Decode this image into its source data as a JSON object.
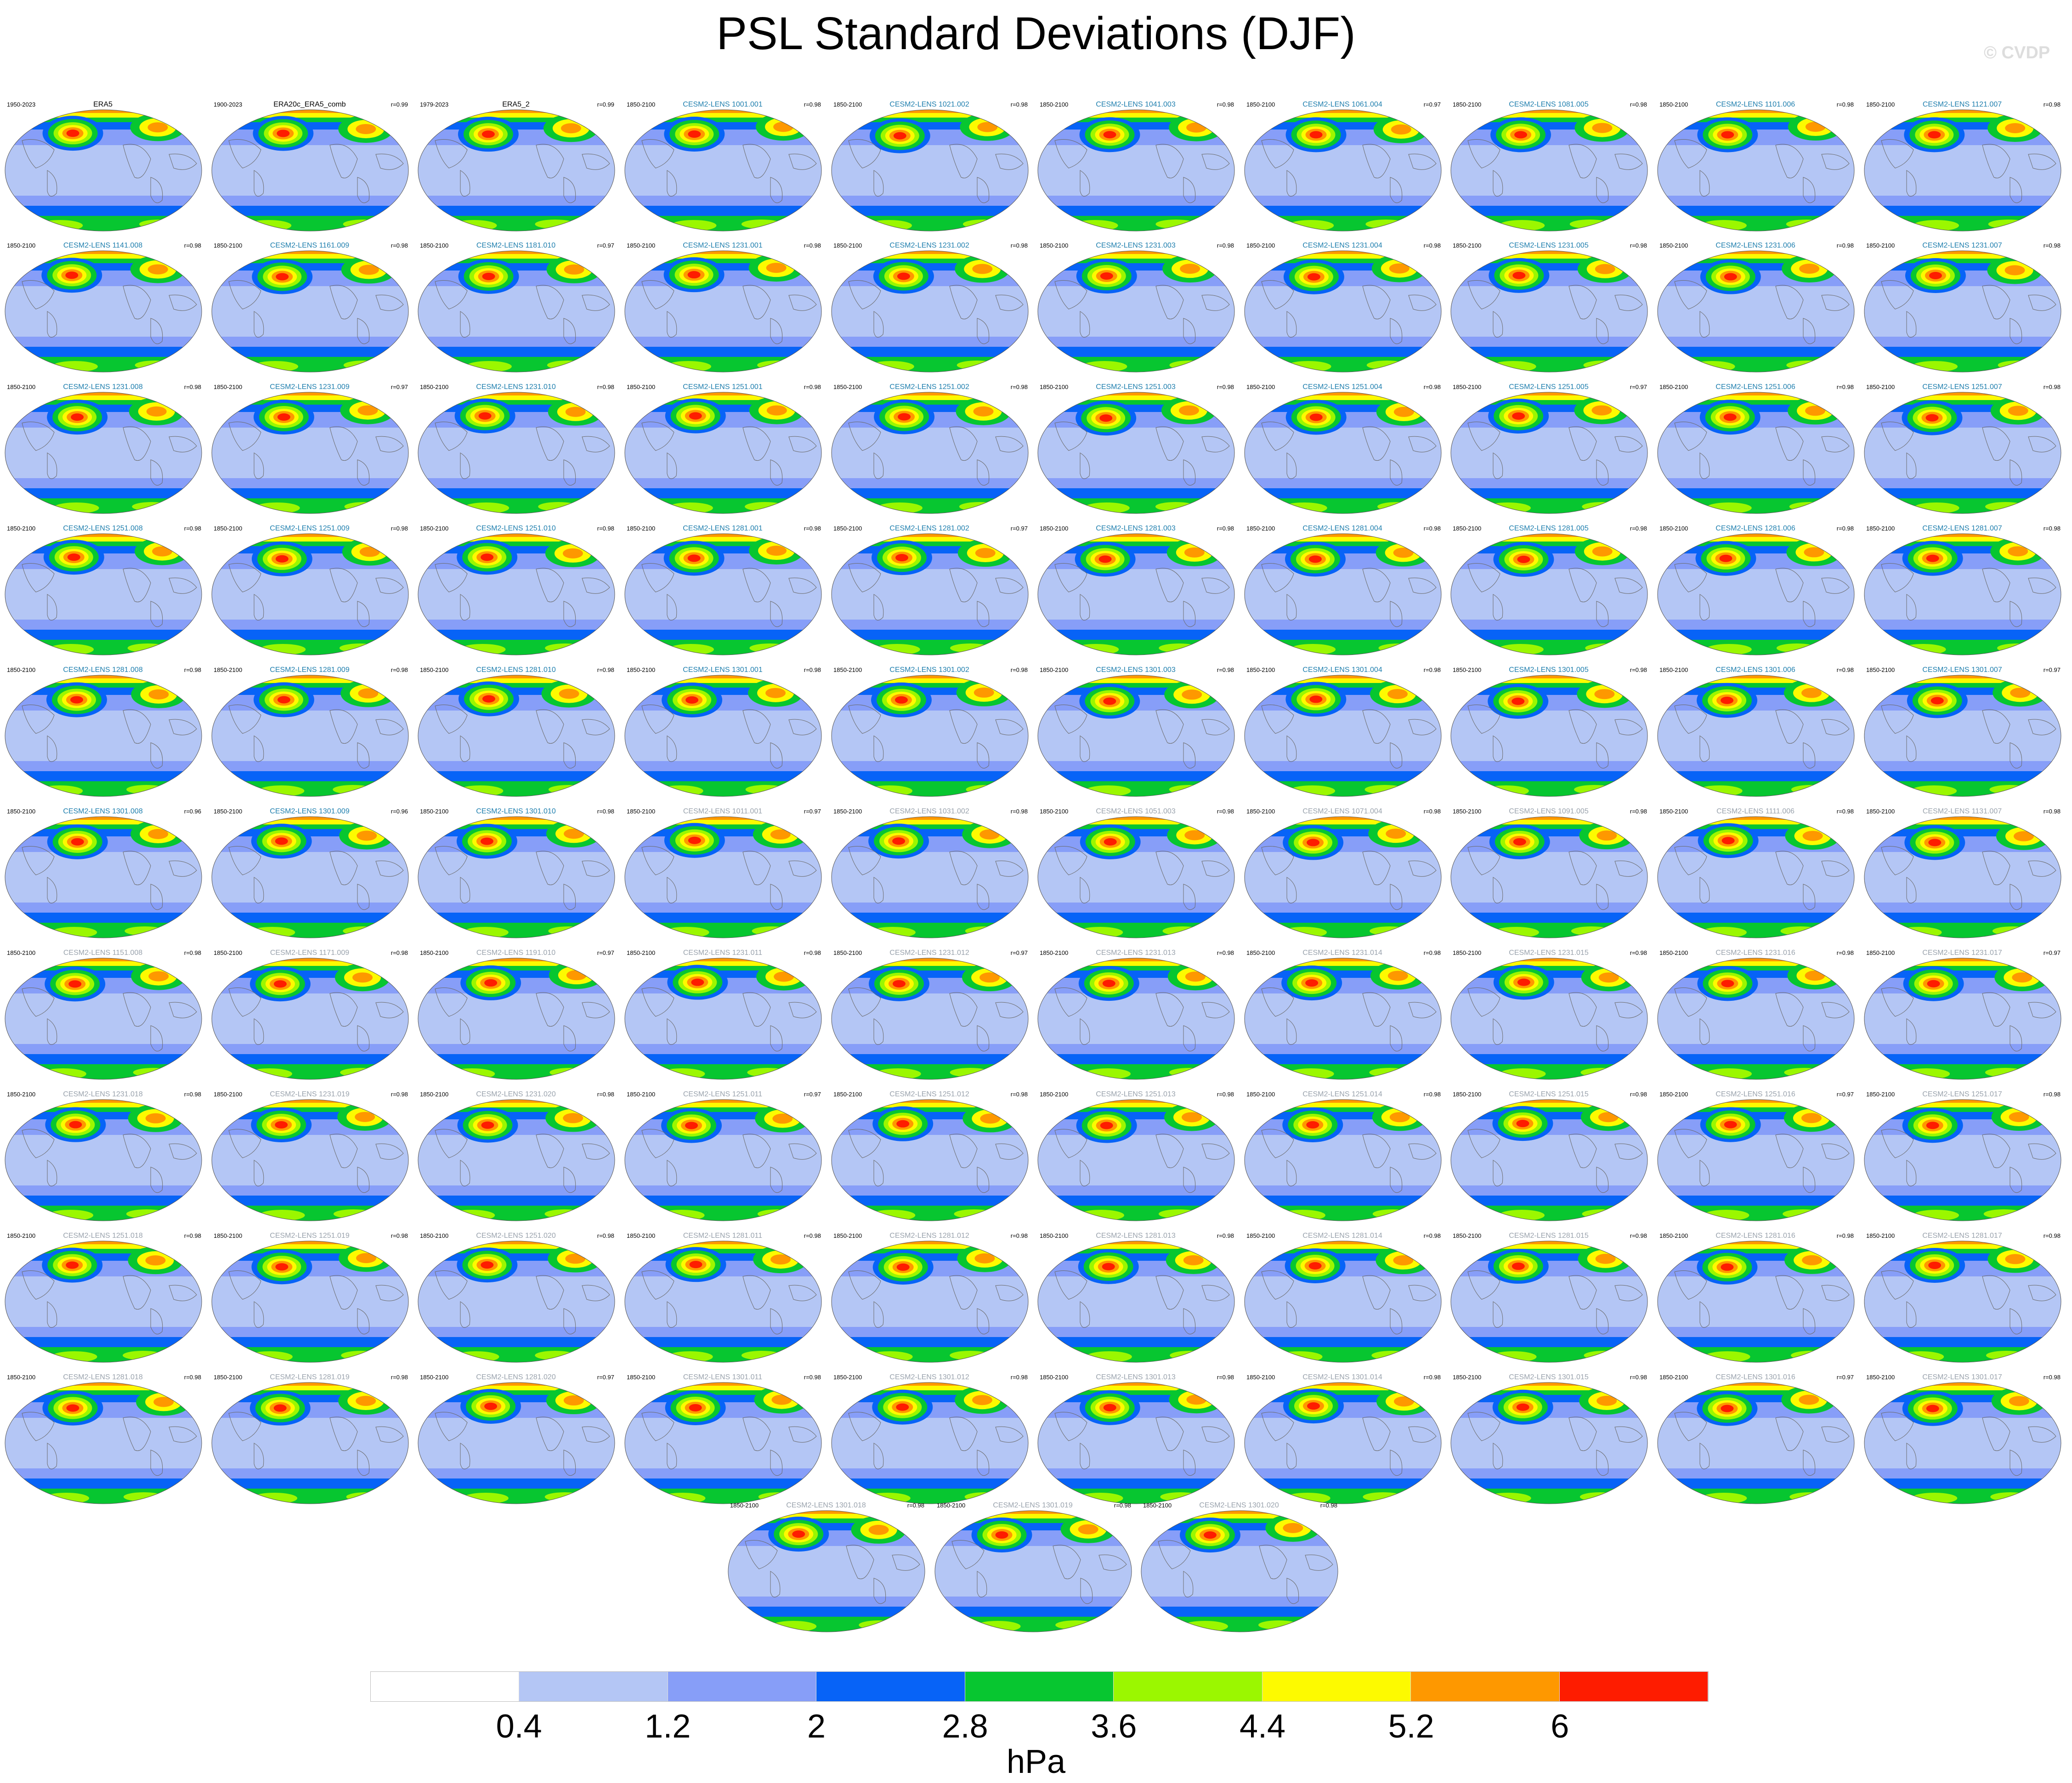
{
  "title": "PSL Standard Deviations (DJF)",
  "watermark": "© CVDP",
  "colors": {
    "title_obs": "#000000",
    "title_member": "#1f7fae",
    "title_extra": "#9aa3ad"
  },
  "chart_data": {
    "type": "heatmap",
    "title": "PSL Standard Deviations (DJF)",
    "units": "hPa",
    "colorbar": {
      "levels": [
        0.4,
        1.2,
        2,
        2.8,
        3.6,
        4.4,
        5.2,
        6
      ],
      "level_labels": [
        "0.4",
        "1.2",
        "2",
        "2.8",
        "3.6",
        "4.4",
        "5.2",
        "6"
      ],
      "colors": [
        "#ffffff",
        "#b4c6f5",
        "#879ef8",
        "#0763f7",
        "#07c630",
        "#9bf700",
        "#fdfa00",
        "#fe9800",
        "#fe1c00"
      ]
    },
    "panels": [
      {
        "name": "ERA5",
        "years": "1950-2023",
        "r": "",
        "style": "obs"
      },
      {
        "name": "ERA20c_ERA5_comb",
        "years": "1900-2023",
        "r": "r=0.99",
        "style": "obs"
      },
      {
        "name": "ERA5_2",
        "years": "1979-2023",
        "r": "r=0.99",
        "style": "obs"
      },
      {
        "name": "CESM2-LENS 1001.001",
        "years": "1850-2100",
        "r": "r=0.98",
        "style": "member"
      },
      {
        "name": "CESM2-LENS 1021.002",
        "years": "1850-2100",
        "r": "r=0.98",
        "style": "member"
      },
      {
        "name": "CESM2-LENS 1041.003",
        "years": "1850-2100",
        "r": "r=0.98",
        "style": "member"
      },
      {
        "name": "CESM2-LENS 1061.004",
        "years": "1850-2100",
        "r": "r=0.97",
        "style": "member"
      },
      {
        "name": "CESM2-LENS 1081.005",
        "years": "1850-2100",
        "r": "r=0.98",
        "style": "member"
      },
      {
        "name": "CESM2-LENS 1101.006",
        "years": "1850-2100",
        "r": "r=0.98",
        "style": "member"
      },
      {
        "name": "CESM2-LENS 1121.007",
        "years": "1850-2100",
        "r": "r=0.98",
        "style": "member"
      },
      {
        "name": "CESM2-LENS 1141.008",
        "years": "1850-2100",
        "r": "r=0.98",
        "style": "member"
      },
      {
        "name": "CESM2-LENS 1161.009",
        "years": "1850-2100",
        "r": "r=0.98",
        "style": "member"
      },
      {
        "name": "CESM2-LENS 1181.010",
        "years": "1850-2100",
        "r": "r=0.97",
        "style": "member"
      },
      {
        "name": "CESM2-LENS 1231.001",
        "years": "1850-2100",
        "r": "r=0.98",
        "style": "member"
      },
      {
        "name": "CESM2-LENS 1231.002",
        "years": "1850-2100",
        "r": "r=0.98",
        "style": "member"
      },
      {
        "name": "CESM2-LENS 1231.003",
        "years": "1850-2100",
        "r": "r=0.98",
        "style": "member"
      },
      {
        "name": "CESM2-LENS 1231.004",
        "years": "1850-2100",
        "r": "r=0.98",
        "style": "member"
      },
      {
        "name": "CESM2-LENS 1231.005",
        "years": "1850-2100",
        "r": "r=0.98",
        "style": "member"
      },
      {
        "name": "CESM2-LENS 1231.006",
        "years": "1850-2100",
        "r": "r=0.98",
        "style": "member"
      },
      {
        "name": "CESM2-LENS 1231.007",
        "years": "1850-2100",
        "r": "r=0.98",
        "style": "member"
      },
      {
        "name": "CESM2-LENS 1231.008",
        "years": "1850-2100",
        "r": "r=0.98",
        "style": "member"
      },
      {
        "name": "CESM2-LENS 1231.009",
        "years": "1850-2100",
        "r": "r=0.97",
        "style": "member"
      },
      {
        "name": "CESM2-LENS 1231.010",
        "years": "1850-2100",
        "r": "r=0.98",
        "style": "member"
      },
      {
        "name": "CESM2-LENS 1251.001",
        "years": "1850-2100",
        "r": "r=0.98",
        "style": "member"
      },
      {
        "name": "CESM2-LENS 1251.002",
        "years": "1850-2100",
        "r": "r=0.98",
        "style": "member"
      },
      {
        "name": "CESM2-LENS 1251.003",
        "years": "1850-2100",
        "r": "r=0.98",
        "style": "member"
      },
      {
        "name": "CESM2-LENS 1251.004",
        "years": "1850-2100",
        "r": "r=0.98",
        "style": "member"
      },
      {
        "name": "CESM2-LENS 1251.005",
        "years": "1850-2100",
        "r": "r=0.97",
        "style": "member"
      },
      {
        "name": "CESM2-LENS 1251.006",
        "years": "1850-2100",
        "r": "r=0.98",
        "style": "member"
      },
      {
        "name": "CESM2-LENS 1251.007",
        "years": "1850-2100",
        "r": "r=0.98",
        "style": "member"
      },
      {
        "name": "CESM2-LENS 1251.008",
        "years": "1850-2100",
        "r": "r=0.98",
        "style": "member"
      },
      {
        "name": "CESM2-LENS 1251.009",
        "years": "1850-2100",
        "r": "r=0.98",
        "style": "member"
      },
      {
        "name": "CESM2-LENS 1251.010",
        "years": "1850-2100",
        "r": "r=0.98",
        "style": "member"
      },
      {
        "name": "CESM2-LENS 1281.001",
        "years": "1850-2100",
        "r": "r=0.98",
        "style": "member"
      },
      {
        "name": "CESM2-LENS 1281.002",
        "years": "1850-2100",
        "r": "r=0.97",
        "style": "member"
      },
      {
        "name": "CESM2-LENS 1281.003",
        "years": "1850-2100",
        "r": "r=0.98",
        "style": "member"
      },
      {
        "name": "CESM2-LENS 1281.004",
        "years": "1850-2100",
        "r": "r=0.98",
        "style": "member"
      },
      {
        "name": "CESM2-LENS 1281.005",
        "years": "1850-2100",
        "r": "r=0.98",
        "style": "member"
      },
      {
        "name": "CESM2-LENS 1281.006",
        "years": "1850-2100",
        "r": "r=0.98",
        "style": "member"
      },
      {
        "name": "CESM2-LENS 1281.007",
        "years": "1850-2100",
        "r": "r=0.98",
        "style": "member"
      },
      {
        "name": "CESM2-LENS 1281.008",
        "years": "1850-2100",
        "r": "r=0.98",
        "style": "member"
      },
      {
        "name": "CESM2-LENS 1281.009",
        "years": "1850-2100",
        "r": "r=0.98",
        "style": "member"
      },
      {
        "name": "CESM2-LENS 1281.010",
        "years": "1850-2100",
        "r": "r=0.98",
        "style": "member"
      },
      {
        "name": "CESM2-LENS 1301.001",
        "years": "1850-2100",
        "r": "r=0.98",
        "style": "member"
      },
      {
        "name": "CESM2-LENS 1301.002",
        "years": "1850-2100",
        "r": "r=0.98",
        "style": "member"
      },
      {
        "name": "CESM2-LENS 1301.003",
        "years": "1850-2100",
        "r": "r=0.98",
        "style": "member"
      },
      {
        "name": "CESM2-LENS 1301.004",
        "years": "1850-2100",
        "r": "r=0.98",
        "style": "member"
      },
      {
        "name": "CESM2-LENS 1301.005",
        "years": "1850-2100",
        "r": "r=0.98",
        "style": "member"
      },
      {
        "name": "CESM2-LENS 1301.006",
        "years": "1850-2100",
        "r": "r=0.98",
        "style": "member"
      },
      {
        "name": "CESM2-LENS 1301.007",
        "years": "1850-2100",
        "r": "r=0.97",
        "style": "member"
      },
      {
        "name": "CESM2-LENS 1301.008",
        "years": "1850-2100",
        "r": "r=0.96",
        "style": "member"
      },
      {
        "name": "CESM2-LENS 1301.009",
        "years": "1850-2100",
        "r": "r=0.96",
        "style": "member"
      },
      {
        "name": "CESM2-LENS 1301.010",
        "years": "1850-2100",
        "r": "r=0.98",
        "style": "member"
      },
      {
        "name": "CESM2-LENS 1011.001",
        "years": "1850-2100",
        "r": "r=0.97",
        "style": "extra"
      },
      {
        "name": "CESM2-LENS 1031.002",
        "years": "1850-2100",
        "r": "r=0.98",
        "style": "extra"
      },
      {
        "name": "CESM2-LENS 1051.003",
        "years": "1850-2100",
        "r": "r=0.98",
        "style": "extra"
      },
      {
        "name": "CESM2-LENS 1071.004",
        "years": "1850-2100",
        "r": "r=0.98",
        "style": "extra"
      },
      {
        "name": "CESM2-LENS 1091.005",
        "years": "1850-2100",
        "r": "r=0.98",
        "style": "extra"
      },
      {
        "name": "CESM2-LENS 1111.006",
        "years": "1850-2100",
        "r": "r=0.98",
        "style": "extra"
      },
      {
        "name": "CESM2-LENS 1131.007",
        "years": "1850-2100",
        "r": "r=0.98",
        "style": "extra"
      },
      {
        "name": "CESM2-LENS 1151.008",
        "years": "1850-2100",
        "r": "r=0.98",
        "style": "extra"
      },
      {
        "name": "CESM2-LENS 1171.009",
        "years": "1850-2100",
        "r": "r=0.98",
        "style": "extra"
      },
      {
        "name": "CESM2-LENS 1191.010",
        "years": "1850-2100",
        "r": "r=0.97",
        "style": "extra"
      },
      {
        "name": "CESM2-LENS 1231.011",
        "years": "1850-2100",
        "r": "r=0.98",
        "style": "extra"
      },
      {
        "name": "CESM2-LENS 1231.012",
        "years": "1850-2100",
        "r": "r=0.97",
        "style": "extra"
      },
      {
        "name": "CESM2-LENS 1231.013",
        "years": "1850-2100",
        "r": "r=0.98",
        "style": "extra"
      },
      {
        "name": "CESM2-LENS 1231.014",
        "years": "1850-2100",
        "r": "r=0.98",
        "style": "extra"
      },
      {
        "name": "CESM2-LENS 1231.015",
        "years": "1850-2100",
        "r": "r=0.98",
        "style": "extra"
      },
      {
        "name": "CESM2-LENS 1231.016",
        "years": "1850-2100",
        "r": "r=0.98",
        "style": "extra"
      },
      {
        "name": "CESM2-LENS 1231.017",
        "years": "1850-2100",
        "r": "r=0.97",
        "style": "extra"
      },
      {
        "name": "CESM2-LENS 1231.018",
        "years": "1850-2100",
        "r": "r=0.98",
        "style": "extra"
      },
      {
        "name": "CESM2-LENS 1231.019",
        "years": "1850-2100",
        "r": "r=0.98",
        "style": "extra"
      },
      {
        "name": "CESM2-LENS 1231.020",
        "years": "1850-2100",
        "r": "r=0.98",
        "style": "extra"
      },
      {
        "name": "CESM2-LENS 1251.011",
        "years": "1850-2100",
        "r": "r=0.97",
        "style": "extra"
      },
      {
        "name": "CESM2-LENS 1251.012",
        "years": "1850-2100",
        "r": "r=0.98",
        "style": "extra"
      },
      {
        "name": "CESM2-LENS 1251.013",
        "years": "1850-2100",
        "r": "r=0.98",
        "style": "extra"
      },
      {
        "name": "CESM2-LENS 1251.014",
        "years": "1850-2100",
        "r": "r=0.98",
        "style": "extra"
      },
      {
        "name": "CESM2-LENS 1251.015",
        "years": "1850-2100",
        "r": "r=0.98",
        "style": "extra"
      },
      {
        "name": "CESM2-LENS 1251.016",
        "years": "1850-2100",
        "r": "r=0.97",
        "style": "extra"
      },
      {
        "name": "CESM2-LENS 1251.017",
        "years": "1850-2100",
        "r": "r=0.98",
        "style": "extra"
      },
      {
        "name": "CESM2-LENS 1251.018",
        "years": "1850-2100",
        "r": "r=0.98",
        "style": "extra"
      },
      {
        "name": "CESM2-LENS 1251.019",
        "years": "1850-2100",
        "r": "r=0.98",
        "style": "extra"
      },
      {
        "name": "CESM2-LENS 1251.020",
        "years": "1850-2100",
        "r": "r=0.98",
        "style": "extra"
      },
      {
        "name": "CESM2-LENS 1281.011",
        "years": "1850-2100",
        "r": "r=0.98",
        "style": "extra"
      },
      {
        "name": "CESM2-LENS 1281.012",
        "years": "1850-2100",
        "r": "r=0.98",
        "style": "extra"
      },
      {
        "name": "CESM2-LENS 1281.013",
        "years": "1850-2100",
        "r": "r=0.98",
        "style": "extra"
      },
      {
        "name": "CESM2-LENS 1281.014",
        "years": "1850-2100",
        "r": "r=0.98",
        "style": "extra"
      },
      {
        "name": "CESM2-LENS 1281.015",
        "years": "1850-2100",
        "r": "r=0.98",
        "style": "extra"
      },
      {
        "name": "CESM2-LENS 1281.016",
        "years": "1850-2100",
        "r": "r=0.98",
        "style": "extra"
      },
      {
        "name": "CESM2-LENS 1281.017",
        "years": "1850-2100",
        "r": "r=0.98",
        "style": "extra"
      },
      {
        "name": "CESM2-LENS 1281.018",
        "years": "1850-2100",
        "r": "r=0.98",
        "style": "extra"
      },
      {
        "name": "CESM2-LENS 1281.019",
        "years": "1850-2100",
        "r": "r=0.98",
        "style": "extra"
      },
      {
        "name": "CESM2-LENS 1281.020",
        "years": "1850-2100",
        "r": "r=0.97",
        "style": "extra"
      },
      {
        "name": "CESM2-LENS 1301.011",
        "years": "1850-2100",
        "r": "r=0.98",
        "style": "extra"
      },
      {
        "name": "CESM2-LENS 1301.012",
        "years": "1850-2100",
        "r": "r=0.98",
        "style": "extra"
      },
      {
        "name": "CESM2-LENS 1301.013",
        "years": "1850-2100",
        "r": "r=0.98",
        "style": "extra"
      },
      {
        "name": "CESM2-LENS 1301.014",
        "years": "1850-2100",
        "r": "r=0.98",
        "style": "extra"
      },
      {
        "name": "CESM2-LENS 1301.015",
        "years": "1850-2100",
        "r": "r=0.98",
        "style": "extra"
      },
      {
        "name": "CESM2-LENS 1301.016",
        "years": "1850-2100",
        "r": "r=0.97",
        "style": "extra"
      },
      {
        "name": "CESM2-LENS 1301.017",
        "years": "1850-2100",
        "r": "r=0.98",
        "style": "extra"
      },
      {
        "name": "CESM2-LENS 1301.018",
        "years": "1850-2100",
        "r": "r=0.98",
        "style": "extra"
      },
      {
        "name": "CESM2-LENS 1301.019",
        "years": "1850-2100",
        "r": "r=0.98",
        "style": "extra"
      },
      {
        "name": "CESM2-LENS 1301.020",
        "years": "1850-2100",
        "r": "r=0.98",
        "style": "extra"
      }
    ]
  }
}
